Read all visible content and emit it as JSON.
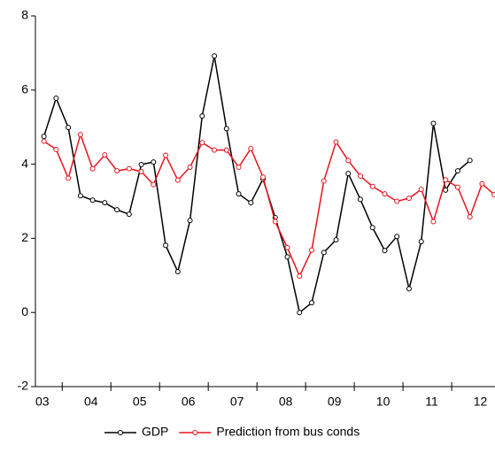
{
  "chart_data": {
    "type": "line",
    "x": [
      2003.625,
      2003.875,
      2004.125,
      2004.375,
      2004.625,
      2004.875,
      2005.125,
      2005.375,
      2005.625,
      2005.875,
      2006.125,
      2006.375,
      2006.625,
      2006.875,
      2007.125,
      2007.375,
      2007.625,
      2007.875,
      2008.125,
      2008.375,
      2008.625,
      2008.875,
      2009.125,
      2009.375,
      2009.625,
      2009.875,
      2010.125,
      2010.375,
      2010.625,
      2010.875,
      2011.125,
      2011.375,
      2011.625,
      2011.875,
      2012.125,
      2012.375,
      2012.625,
      2012.875
    ],
    "series": [
      {
        "name": "GDP",
        "color": "#000000",
        "values": [
          4.75,
          5.78,
          4.99,
          3.15,
          3.03,
          2.96,
          2.77,
          2.65,
          3.99,
          4.06,
          1.81,
          1.1,
          2.48,
          5.3,
          6.92,
          4.96,
          3.2,
          2.96,
          3.6,
          2.56,
          1.5,
          0.0,
          0.26,
          1.62,
          1.96,
          3.75,
          3.05,
          2.29,
          1.67,
          2.05,
          0.64,
          1.91,
          5.1,
          3.3,
          3.82,
          4.1,
          null,
          null
        ]
      },
      {
        "name": "Prediction from bus conds",
        "color": "#e8141c",
        "values": [
          4.62,
          4.4,
          3.62,
          4.8,
          3.88,
          4.25,
          3.82,
          3.88,
          3.8,
          3.45,
          4.24,
          3.57,
          3.92,
          4.58,
          4.38,
          4.38,
          3.92,
          4.42,
          3.65,
          2.45,
          1.75,
          0.98,
          1.68,
          3.55,
          4.6,
          4.1,
          3.68,
          3.4,
          3.2,
          3.0,
          3.08,
          3.32,
          2.45,
          3.58,
          3.38,
          2.58,
          3.47,
          3.18
        ]
      }
    ],
    "xlim": [
      2003.45,
      2012.89
    ],
    "xticks": [
      {
        "value": 2003.5,
        "label": "03"
      },
      {
        "value": 2004.5,
        "label": "04"
      },
      {
        "value": 2005.5,
        "label": "05"
      },
      {
        "value": 2006.5,
        "label": "06"
      },
      {
        "value": 2007.5,
        "label": "07"
      },
      {
        "value": 2008.5,
        "label": "08"
      },
      {
        "value": 2009.5,
        "label": "09"
      },
      {
        "value": 2010.5,
        "label": "10"
      },
      {
        "value": 2011.5,
        "label": "11"
      },
      {
        "value": 2012.5,
        "label": "12"
      }
    ],
    "xtick_marks": [
      2004,
      2005,
      2006,
      2007,
      2008,
      2009,
      2010,
      2011,
      2012
    ],
    "ylim": [
      -2,
      8
    ],
    "yticks": [
      -2,
      0,
      2,
      4,
      6,
      8
    ],
    "grid": false,
    "legend": "bottom"
  }
}
